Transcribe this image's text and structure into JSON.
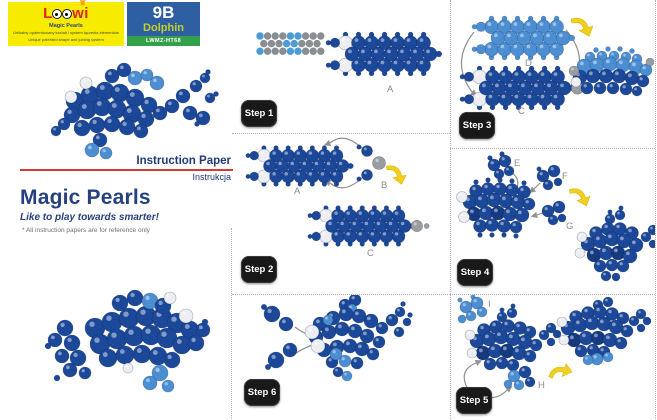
{
  "brand": {
    "name": "Loowi",
    "subtitle": "Magic Pearls",
    "tagline_pl": "Unikalny opatentowany kształt i system łączenia elementów",
    "tagline_en": "Unique patented shape and joining system"
  },
  "kit": {
    "code": "9B",
    "name": "Dolphin",
    "model": "LWMZ-HT68"
  },
  "info": {
    "title_en": "Instruction Paper",
    "title_pl": "Instrukcja",
    "product": "Magic Pearls",
    "slogan": "Like to play towards smarter!",
    "note": "* All instruction papers are for reference only"
  },
  "steps": {
    "s1": "Step 1",
    "s2": "Step 2",
    "s3": "Step 3",
    "s4": "Step 4",
    "s5": "Step 5",
    "s6": "Step 6"
  },
  "part_labels": {
    "a": "A",
    "b": "B",
    "c": "C",
    "d": "D",
    "e": "E",
    "f": "F",
    "g": "G",
    "h": "H",
    "i": "I"
  },
  "pattern_grid": {
    "rows": [
      [
        "l",
        "g",
        "g",
        "g",
        "l",
        "l",
        "g",
        "g",
        "g"
      ],
      [
        "g",
        "g",
        "g",
        "l",
        "l",
        "g",
        "g",
        "g"
      ],
      [
        "l",
        "g",
        "g",
        "g",
        "l",
        "l",
        "g",
        "g",
        "g"
      ]
    ],
    "legend": {
      "l": "#4b9cd6",
      "g": "#8a8d91"
    }
  },
  "colors": {
    "dark_blue": "#1c4899",
    "dark_blue2": "#163a80",
    "light_blue": "#4b8fd2",
    "white_bead": "#eceef2",
    "gray_bead": "#9a9da2",
    "arrow_yellow": "#f2cf1d",
    "arrow_yellow_edge": "#d4b414",
    "arc_gray": "#8e9094",
    "label_gray": "#8a8d93",
    "badge_bg": "#191919",
    "navy": "#26417f",
    "red": "#d23c32"
  }
}
